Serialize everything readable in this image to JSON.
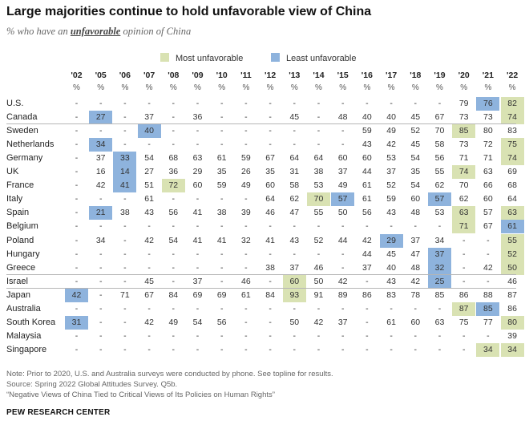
{
  "title": "Large majorities continue to hold unfavorable view of China",
  "subtitle": {
    "prefix": "% who have an",
    "emphasis": "unfavorable",
    "suffix": "opinion of China"
  },
  "legend": {
    "most": {
      "label": "Most unfavorable",
      "color": "#d9e2b3"
    },
    "least": {
      "label": "Least unfavorable",
      "color": "#8eb3dd"
    }
  },
  "chart_data": {
    "type": "table",
    "title": "Large majorities continue to hold unfavorable view of China",
    "years": [
      "'02",
      "'05",
      "'06",
      "'07",
      "'08",
      "'09",
      "'10",
      "'11",
      "'12",
      "'13",
      "'14",
      "'15",
      "'16",
      "'17",
      "'18",
      "'19",
      "'20",
      "'21",
      "'22"
    ],
    "unit_label": "%",
    "missing": "-",
    "rows": [
      {
        "country": "U.S.",
        "values": [
          "-",
          "-",
          "-",
          "-",
          "-",
          "-",
          "-",
          "-",
          "-",
          "-",
          "-",
          "-",
          "-",
          "-",
          "-",
          "-",
          "79",
          "76",
          "82"
        ],
        "most": [
          18
        ],
        "least": [
          17
        ]
      },
      {
        "country": "Canada",
        "values": [
          "-",
          "27",
          "-",
          "37",
          "-",
          "36",
          "-",
          "-",
          "-",
          "45",
          "-",
          "48",
          "40",
          "40",
          "45",
          "67",
          "73",
          "73",
          "74"
        ],
        "most": [
          18
        ],
        "least": [
          1
        ]
      },
      {
        "country": "Sweden",
        "values": [
          "-",
          "-",
          "-",
          "40",
          "-",
          "-",
          "-",
          "-",
          "-",
          "-",
          "-",
          "-",
          "59",
          "49",
          "52",
          "70",
          "85",
          "80",
          "83"
        ],
        "most": [
          16
        ],
        "least": [
          3
        ]
      },
      {
        "country": "Netherlands",
        "values": [
          "-",
          "34",
          "-",
          "-",
          "-",
          "-",
          "-",
          "-",
          "-",
          "-",
          "-",
          "-",
          "43",
          "42",
          "45",
          "58",
          "73",
          "72",
          "75"
        ],
        "most": [
          18
        ],
        "least": [
          1
        ]
      },
      {
        "country": "Germany",
        "values": [
          "-",
          "37",
          "33",
          "54",
          "68",
          "63",
          "61",
          "59",
          "67",
          "64",
          "64",
          "60",
          "60",
          "53",
          "54",
          "56",
          "71",
          "71",
          "74"
        ],
        "most": [
          18
        ],
        "least": [
          2
        ]
      },
      {
        "country": "UK",
        "values": [
          "-",
          "16",
          "14",
          "27",
          "36",
          "29",
          "35",
          "26",
          "35",
          "31",
          "38",
          "37",
          "44",
          "37",
          "35",
          "55",
          "74",
          "63",
          "69"
        ],
        "most": [
          16
        ],
        "least": [
          2
        ]
      },
      {
        "country": "France",
        "values": [
          "-",
          "42",
          "41",
          "51",
          "72",
          "60",
          "59",
          "49",
          "60",
          "58",
          "53",
          "49",
          "61",
          "52",
          "54",
          "62",
          "70",
          "66",
          "68"
        ],
        "most": [
          4
        ],
        "least": [
          2
        ]
      },
      {
        "country": "Italy",
        "values": [
          "-",
          "-",
          "-",
          "61",
          "-",
          "-",
          "-",
          "-",
          "64",
          "62",
          "70",
          "57",
          "61",
          "59",
          "60",
          "57",
          "62",
          "60",
          "64"
        ],
        "most": [
          10
        ],
        "least": [
          11,
          15
        ]
      },
      {
        "country": "Spain",
        "values": [
          "-",
          "21",
          "38",
          "43",
          "56",
          "41",
          "38",
          "39",
          "46",
          "47",
          "55",
          "50",
          "56",
          "43",
          "48",
          "53",
          "63",
          "57",
          "63"
        ],
        "most": [
          16,
          18
        ],
        "least": [
          1
        ]
      },
      {
        "country": "Belgium",
        "values": [
          "-",
          "-",
          "-",
          "-",
          "-",
          "-",
          "-",
          "-",
          "-",
          "-",
          "-",
          "-",
          "-",
          "-",
          "-",
          "-",
          "71",
          "67",
          "61"
        ],
        "most": [
          16
        ],
        "least": [
          18
        ]
      },
      {
        "country": "Poland",
        "values": [
          "-",
          "34",
          "-",
          "42",
          "54",
          "41",
          "41",
          "32",
          "41",
          "43",
          "52",
          "44",
          "42",
          "29",
          "37",
          "34",
          "-",
          "-",
          "55"
        ],
        "most": [
          18
        ],
        "least": [
          13
        ]
      },
      {
        "country": "Hungary",
        "values": [
          "-",
          "-",
          "-",
          "-",
          "-",
          "-",
          "-",
          "-",
          "-",
          "-",
          "-",
          "-",
          "44",
          "45",
          "47",
          "37",
          "-",
          "-",
          "52"
        ],
        "most": [
          18
        ],
        "least": [
          15
        ]
      },
      {
        "country": "Greece",
        "values": [
          "-",
          "-",
          "-",
          "-",
          "-",
          "-",
          "-",
          "-",
          "38",
          "37",
          "46",
          "-",
          "37",
          "40",
          "48",
          "32",
          "-",
          "42",
          "50"
        ],
        "most": [
          18
        ],
        "least": [
          15
        ]
      },
      {
        "country": "Israel",
        "values": [
          "-",
          "-",
          "-",
          "45",
          "-",
          "37",
          "-",
          "46",
          "-",
          "60",
          "50",
          "42",
          "-",
          "43",
          "42",
          "25",
          "-",
          "-",
          "46"
        ],
        "most": [
          9
        ],
        "least": [
          15
        ]
      },
      {
        "country": "Japan",
        "values": [
          "42",
          "-",
          "71",
          "67",
          "84",
          "69",
          "69",
          "61",
          "84",
          "93",
          "91",
          "89",
          "86",
          "83",
          "78",
          "85",
          "86",
          "88",
          "87"
        ],
        "most": [
          9
        ],
        "least": [
          0
        ]
      },
      {
        "country": "Australia",
        "values": [
          "-",
          "-",
          "-",
          "-",
          "-",
          "-",
          "-",
          "-",
          "-",
          "-",
          "-",
          "-",
          "-",
          "-",
          "-",
          "-",
          "87",
          "85",
          "86"
        ],
        "most": [
          16
        ],
        "least": [
          17
        ]
      },
      {
        "country": "South Korea",
        "values": [
          "31",
          "-",
          "-",
          "42",
          "49",
          "54",
          "56",
          "-",
          "-",
          "50",
          "42",
          "37",
          "-",
          "61",
          "60",
          "63",
          "75",
          "77",
          "80"
        ],
        "most": [
          18
        ],
        "least": [
          0
        ]
      },
      {
        "country": "Malaysia",
        "values": [
          "-",
          "-",
          "-",
          "-",
          "-",
          "-",
          "-",
          "-",
          "-",
          "-",
          "-",
          "-",
          "-",
          "-",
          "-",
          "-",
          "-",
          "-",
          "39"
        ],
        "most": [],
        "least": []
      },
      {
        "country": "Singapore",
        "values": [
          "-",
          "-",
          "-",
          "-",
          "-",
          "-",
          "-",
          "-",
          "-",
          "-",
          "-",
          "-",
          "-",
          "-",
          "-",
          "-",
          "-",
          "34",
          "34"
        ],
        "most": [
          17,
          18
        ],
        "least": []
      }
    ]
  },
  "notes": [
    "Note: Prior to 2020, U.S. and Australia surveys were conducted by phone. See topline for results.",
    "Source: Spring 2022 Global Attitudes Survey. Q5b.",
    "“Negative Views of China Tied to Critical Views of Its Policies on Human Rights”"
  ],
  "source_label": "PEW RESEARCH CENTER"
}
